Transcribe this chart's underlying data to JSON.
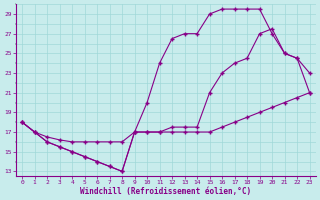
{
  "xlabel": "Windchill (Refroidissement éolien,°C)",
  "bg_color": "#c8ecec",
  "line_color": "#880088",
  "grid_color": "#a0d8d8",
  "curve1_x": [
    0,
    1,
    2,
    3,
    4,
    5,
    6,
    7,
    8,
    9,
    10,
    11,
    12,
    13,
    14,
    15,
    16,
    17,
    18,
    19,
    20,
    21,
    22,
    23
  ],
  "curve1_y": [
    18,
    17,
    16.5,
    16.2,
    16.0,
    16.0,
    16.0,
    16.0,
    16.0,
    17.0,
    17.0,
    17.0,
    17.0,
    17.0,
    17.0,
    17.0,
    17.5,
    18.0,
    18.5,
    19.0,
    19.5,
    20.0,
    20.5,
    21.0
  ],
  "curve2_x": [
    0,
    1,
    2,
    3,
    4,
    5,
    6,
    7,
    8,
    9,
    10,
    11,
    12,
    13,
    14,
    15,
    16,
    17,
    18,
    19,
    20,
    21,
    22,
    23
  ],
  "curve2_y": [
    18,
    17,
    16.0,
    15.5,
    15.0,
    14.5,
    14.0,
    13.5,
    13.0,
    17.0,
    20.0,
    24.0,
    26.5,
    27.0,
    27.0,
    29.0,
    29.5,
    29.5,
    29.5,
    29.5,
    27.0,
    25.0,
    24.5,
    23.0
  ],
  "curve3_x": [
    0,
    1,
    2,
    3,
    4,
    5,
    6,
    7,
    8,
    9,
    10,
    11,
    12,
    13,
    14,
    15,
    16,
    17,
    18,
    19,
    20,
    21,
    22,
    23
  ],
  "curve3_y": [
    18,
    17,
    16.0,
    15.5,
    15.0,
    14.5,
    14.0,
    13.5,
    13.0,
    17.0,
    17.0,
    17.0,
    17.5,
    17.5,
    17.5,
    21.0,
    23.0,
    24.0,
    24.5,
    27.0,
    27.5,
    25.0,
    24.5,
    21.0
  ],
  "xlim": [
    -0.5,
    23.5
  ],
  "ylim": [
    12.5,
    30.0
  ],
  "yticks": [
    13,
    15,
    17,
    19,
    21,
    23,
    25,
    27,
    29
  ],
  "xticks": [
    0,
    1,
    2,
    3,
    4,
    5,
    6,
    7,
    8,
    9,
    10,
    11,
    12,
    13,
    14,
    15,
    16,
    17,
    18,
    19,
    20,
    21,
    22,
    23
  ]
}
